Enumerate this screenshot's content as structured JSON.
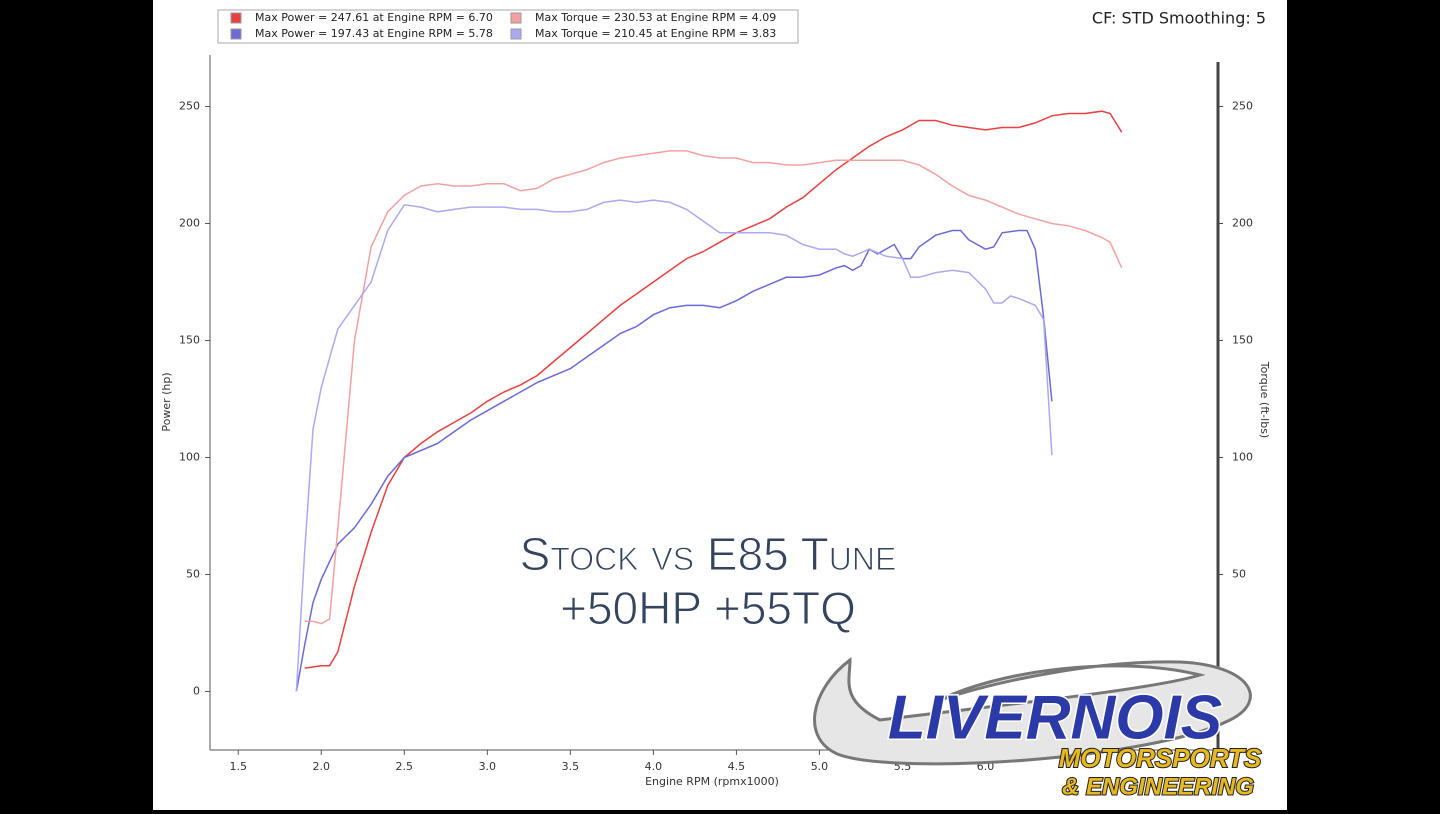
{
  "chart_data": {
    "type": "line",
    "subtitle": "CF: STD Smoothing: 5",
    "y_label": "Power (hp)",
    "y2_label": "Torque (ft-lbs)",
    "x_label": "Engine RPM (rpmx1000)",
    "annotations": [
      "Stock vs E85 Tune",
      "+50HP +55TQ"
    ],
    "logo": [
      "LIVERNOIS",
      "MOTORSPORTS",
      "& ENGINEERING"
    ],
    "xlim": [
      1.33,
      7.4
    ],
    "ylim": [
      -25,
      272
    ],
    "y2lim": [
      -25,
      272
    ],
    "xticks": [
      1.5,
      {
        "value": 2,
        "label": "2.0"
      },
      2.5,
      {
        "value": 3,
        "label": "3.0"
      },
      3.5,
      {
        "value": 4,
        "label": "4.0"
      },
      4.5,
      {
        "value": 5,
        "label": "5.0"
      },
      5.5,
      {
        "value": 6,
        "label": "6.0"
      }
    ],
    "yticks": [
      0,
      50,
      100,
      150,
      200,
      250
    ],
    "y2ticks": [
      0,
      50,
      100,
      150,
      200,
      250
    ],
    "series": [
      {
        "name": "Max Power = 247.61 at Engine RPM = 6.70",
        "color": "#e84040",
        "axis": "y",
        "x": [
          1.9,
          2.0,
          2.05,
          2.1,
          2.2,
          2.3,
          2.4,
          2.5,
          2.6,
          2.7,
          2.8,
          2.9,
          3.0,
          3.1,
          3.2,
          3.3,
          3.4,
          3.5,
          3.6,
          3.7,
          3.8,
          3.9,
          4.0,
          4.1,
          4.2,
          4.3,
          4.4,
          4.5,
          4.6,
          4.7,
          4.8,
          4.9,
          5.0,
          5.1,
          5.2,
          5.3,
          5.4,
          5.5,
          5.6,
          5.7,
          5.8,
          5.9,
          6.0,
          6.1,
          6.2,
          6.3,
          6.4,
          6.5,
          6.6,
          6.7,
          6.75,
          6.82
        ],
        "values": [
          10,
          11,
          11,
          17,
          45,
          68,
          88,
          100,
          106,
          111,
          115,
          119,
          124,
          128,
          131,
          135,
          141,
          147,
          153,
          159,
          165,
          170,
          175,
          180,
          185,
          188,
          192,
          196,
          199,
          202,
          207,
          211,
          217,
          223,
          228,
          233,
          237,
          240,
          244,
          244,
          242,
          241,
          240,
          241,
          241,
          243,
          246,
          247,
          247,
          248,
          247,
          239
        ]
      },
      {
        "name": "Max Power = 197.43 at Engine RPM = 5.78",
        "color": "#6a6ad8",
        "axis": "y",
        "x": [
          1.85,
          1.9,
          1.95,
          2.0,
          2.1,
          2.2,
          2.3,
          2.4,
          2.5,
          2.6,
          2.7,
          2.8,
          2.9,
          3.0,
          3.1,
          3.2,
          3.3,
          3.4,
          3.5,
          3.6,
          3.7,
          3.8,
          3.9,
          4.0,
          4.1,
          4.2,
          4.3,
          4.4,
          4.5,
          4.6,
          4.7,
          4.8,
          4.9,
          5.0,
          5.1,
          5.15,
          5.2,
          5.25,
          5.3,
          5.35,
          5.45,
          5.5,
          5.55,
          5.6,
          5.7,
          5.8,
          5.85,
          5.9,
          6.0,
          6.05,
          6.1,
          6.2,
          6.25,
          6.3,
          6.35,
          6.4
        ],
        "values": [
          0,
          20,
          38,
          48,
          63,
          70,
          80,
          92,
          100,
          103,
          106,
          111,
          116,
          120,
          124,
          128,
          132,
          135,
          138,
          143,
          148,
          153,
          156,
          161,
          164,
          165,
          165,
          164,
          167,
          171,
          174,
          177,
          177,
          178,
          181,
          182,
          180,
          182,
          189,
          187,
          191,
          185,
          185,
          190,
          195,
          197,
          197,
          193,
          189,
          190,
          196,
          197,
          197,
          189,
          160,
          124
        ]
      },
      {
        "name": "Max Torque = 230.53 at Engine RPM = 4.09",
        "color": "#f4a0a0",
        "axis": "y2",
        "x": [
          1.9,
          1.95,
          2.0,
          2.05,
          2.1,
          2.2,
          2.3,
          2.4,
          2.5,
          2.6,
          2.7,
          2.8,
          2.9,
          3.0,
          3.1,
          3.2,
          3.3,
          3.4,
          3.5,
          3.6,
          3.7,
          3.8,
          3.9,
          4.0,
          4.1,
          4.2,
          4.3,
          4.4,
          4.5,
          4.6,
          4.7,
          4.8,
          4.9,
          5.0,
          5.1,
          5.2,
          5.3,
          5.4,
          5.5,
          5.6,
          5.7,
          5.8,
          5.9,
          6.0,
          6.1,
          6.2,
          6.3,
          6.4,
          6.5,
          6.6,
          6.7,
          6.75,
          6.82
        ],
        "values": [
          30,
          30,
          29,
          31,
          70,
          150,
          190,
          205,
          212,
          216,
          217,
          216,
          216,
          217,
          217,
          214,
          215,
          219,
          221,
          223,
          226,
          228,
          229,
          230,
          231,
          231,
          229,
          228,
          228,
          226,
          226,
          225,
          225,
          226,
          227,
          227,
          227,
          227,
          227,
          225,
          221,
          216,
          212,
          210,
          207,
          204,
          202,
          200,
          199,
          197,
          194,
          192,
          181
        ]
      },
      {
        "name": "Max Torque = 210.45 at Engine RPM = 3.83",
        "color": "#aaaaf0",
        "axis": "y2",
        "x": [
          1.85,
          1.9,
          1.95,
          2.0,
          2.1,
          2.2,
          2.3,
          2.4,
          2.5,
          2.6,
          2.7,
          2.8,
          2.9,
          3.0,
          3.1,
          3.2,
          3.3,
          3.4,
          3.5,
          3.6,
          3.7,
          3.8,
          3.9,
          4.0,
          4.1,
          4.2,
          4.3,
          4.4,
          4.5,
          4.6,
          4.7,
          4.8,
          4.9,
          5.0,
          5.1,
          5.15,
          5.2,
          5.3,
          5.4,
          5.5,
          5.55,
          5.6,
          5.7,
          5.8,
          5.9,
          6.0,
          6.05,
          6.1,
          6.15,
          6.2,
          6.3,
          6.35,
          6.4
        ],
        "values": [
          0,
          60,
          112,
          130,
          155,
          165,
          175,
          197,
          208,
          207,
          205,
          206,
          207,
          207,
          207,
          206,
          206,
          205,
          205,
          206,
          209,
          210,
          209,
          210,
          209,
          206,
          201,
          196,
          196,
          196,
          196,
          195,
          191,
          189,
          189,
          187,
          186,
          189,
          186,
          185,
          177,
          177,
          179,
          180,
          179,
          172,
          166,
          166,
          169,
          168,
          165,
          159,
          101
        ]
      }
    ]
  }
}
